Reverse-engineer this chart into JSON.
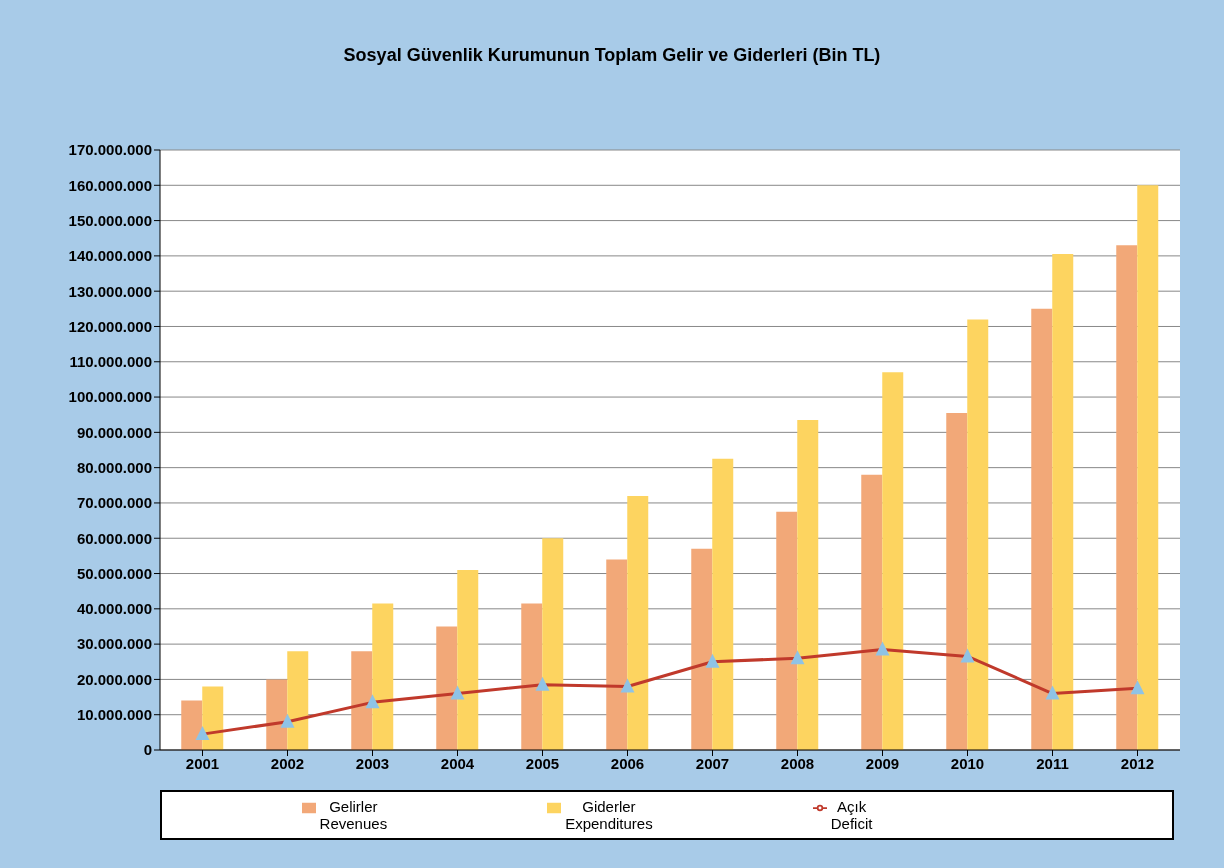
{
  "chart_data": {
    "type": "bar",
    "title": "Sosyal Güvenlik Kurumunun Toplam Gelir ve Giderleri (Bin TL)",
    "categories": [
      "2001",
      "2002",
      "2003",
      "2004",
      "2005",
      "2006",
      "2007",
      "2008",
      "2009",
      "2010",
      "2011",
      "2012"
    ],
    "series": [
      {
        "name": "Gelirler\nRevenues",
        "color": "#f2a878",
        "values": [
          14000000,
          20000000,
          28000000,
          35000000,
          41500000,
          54000000,
          57000000,
          67500000,
          78000000,
          95500000,
          125000000,
          143000000
        ]
      },
      {
        "name": "Giderler\nExpenditures",
        "color": "#fdd460",
        "values": [
          18000000,
          28000000,
          41500000,
          51000000,
          60000000,
          72000000,
          82500000,
          93500000,
          107000000,
          122000000,
          140500000,
          160000000
        ]
      },
      {
        "name": "Açık\nDeficit",
        "type": "line",
        "color": "#c0392b",
        "marker": "triangle",
        "values": [
          4500000,
          8000000,
          13500000,
          16000000,
          18500000,
          18000000,
          25000000,
          26000000,
          28500000,
          26500000,
          16000000,
          17500000
        ]
      }
    ],
    "ylim": [
      0,
      170000000
    ],
    "yticks": [
      {
        "value": 0,
        "label": "0"
      },
      {
        "value": 10000000,
        "label": "10.000.000"
      },
      {
        "value": 20000000,
        "label": "20.000.000"
      },
      {
        "value": 30000000,
        "label": "30.000.000"
      },
      {
        "value": 40000000,
        "label": "40.000.000"
      },
      {
        "value": 50000000,
        "label": "50.000.000"
      },
      {
        "value": 60000000,
        "label": "60.000.000"
      },
      {
        "value": 70000000,
        "label": "70.000.000"
      },
      {
        "value": 80000000,
        "label": "80.000.000"
      },
      {
        "value": 90000000,
        "label": "90.000.000"
      },
      {
        "value": 100000000,
        "label": "100.000.000"
      },
      {
        "value": 110000000,
        "label": "110.000.000"
      },
      {
        "value": 120000000,
        "label": "120.000.000"
      },
      {
        "value": 130000000,
        "label": "130.000.000"
      },
      {
        "value": 140000000,
        "label": "140.000.000"
      },
      {
        "value": 150000000,
        "label": "150.000.000"
      },
      {
        "value": 160000000,
        "label": "160.000.000"
      },
      {
        "value": 170000000,
        "label": "170.000.000"
      }
    ],
    "grid": "y",
    "legend": "bottom"
  }
}
